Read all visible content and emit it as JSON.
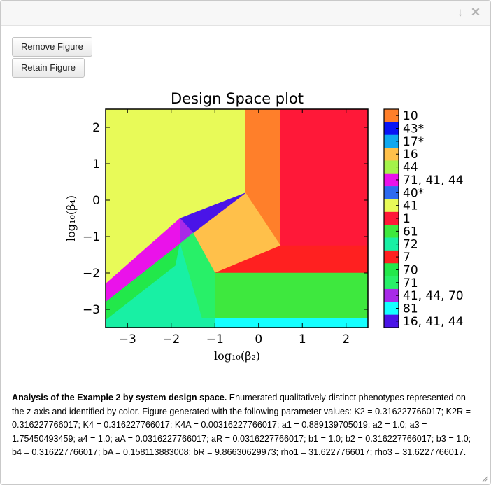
{
  "window": {
    "collapse_icon": "arrow-down-icon",
    "close_icon": "close-icon"
  },
  "buttons": {
    "remove_label": "Remove Figure",
    "retain_label": "Retain Figure"
  },
  "chart_data": {
    "type": "heatmap",
    "title": "Design Space plot",
    "xlabel": "log₁₀(β₂)",
    "ylabel": "log₁₀(β₄)",
    "xlim": [
      -3.5,
      2.5
    ],
    "ylim": [
      -3.5,
      2.5
    ],
    "xticks": [
      "−3",
      "−2",
      "−1",
      "0",
      "1",
      "2"
    ],
    "xtick_values": [
      -3,
      -2,
      -1,
      0,
      1,
      2
    ],
    "yticks": [
      "−3",
      "−2",
      "−1",
      "0",
      "1",
      "2"
    ],
    "ytick_values": [
      -3,
      -2,
      -1,
      0,
      1,
      2
    ],
    "legend_placement": "right",
    "legend": [
      {
        "label": "10",
        "color": "#ff7f2a"
      },
      {
        "label": "43*",
        "color": "#0a14f5"
      },
      {
        "label": "17*",
        "color": "#10a8f0"
      },
      {
        "label": "16",
        "color": "#ffc04a"
      },
      {
        "label": "44",
        "color": "#a4f34a"
      },
      {
        "label": "71, 41, 44",
        "color": "#ea12ea"
      },
      {
        "label": "40*",
        "color": "#2d6bf0"
      },
      {
        "label": "41",
        "color": "#e8fa58"
      },
      {
        "label": "1",
        "color": "#ff1838"
      },
      {
        "label": "61",
        "color": "#3ee83e"
      },
      {
        "label": "72",
        "color": "#18f0a4"
      },
      {
        "label": "7",
        "color": "#ff2020"
      },
      {
        "label": "70",
        "color": "#22e84a"
      },
      {
        "label": "71",
        "color": "#28f068"
      },
      {
        "label": "41, 44, 70",
        "color": "#a82ae8"
      },
      {
        "label": "81",
        "color": "#14ffff"
      },
      {
        "label": "16, 41, 44",
        "color": "#4a14e8"
      }
    ],
    "regions": [
      {
        "phenotype": "41",
        "color": "#e8fa58",
        "points": [
          [
            -3.5,
            -2.3
          ],
          [
            -1.8,
            -0.5
          ],
          [
            -0.3,
            0.2
          ],
          [
            -0.3,
            2.5
          ],
          [
            -3.5,
            2.5
          ]
        ]
      },
      {
        "phenotype": "10",
        "color": "#ff7f2a",
        "points": [
          [
            -0.3,
            2.5
          ],
          [
            0.5,
            2.5
          ],
          [
            0.5,
            -1.25
          ],
          [
            -0.3,
            0.2
          ]
        ]
      },
      {
        "phenotype": "1",
        "color": "#ff1838",
        "points": [
          [
            0.5,
            2.5
          ],
          [
            2.5,
            2.5
          ],
          [
            2.5,
            -1.25
          ],
          [
            0.5,
            -1.25
          ]
        ]
      },
      {
        "phenotype": "16",
        "color": "#ffc04a",
        "points": [
          [
            -1.5,
            -0.9
          ],
          [
            -0.3,
            0.2
          ],
          [
            0.5,
            -1.25
          ],
          [
            -1.0,
            -2.0
          ]
        ]
      },
      {
        "phenotype": "16, 41, 44",
        "color": "#4a14e8",
        "points": [
          [
            -1.8,
            -0.5
          ],
          [
            -0.3,
            0.2
          ],
          [
            -1.5,
            -0.9
          ],
          [
            -1.8,
            -1.2
          ]
        ]
      },
      {
        "phenotype": "71, 41, 44",
        "color": "#ea12ea",
        "points": [
          [
            -3.5,
            -2.3
          ],
          [
            -1.8,
            -0.5
          ],
          [
            -1.8,
            -1.2
          ],
          [
            -3.5,
            -2.8
          ]
        ]
      },
      {
        "phenotype": "41, 44, 70",
        "color": "#a82ae8",
        "points": [
          [
            -1.8,
            -0.5
          ],
          [
            -1.5,
            -0.9
          ],
          [
            -1.8,
            -1.2
          ]
        ]
      },
      {
        "phenotype": "7",
        "color": "#ff2020",
        "points": [
          [
            -1.0,
            -2.0
          ],
          [
            0.5,
            -1.25
          ],
          [
            2.5,
            -1.25
          ],
          [
            2.5,
            -2.0
          ]
        ]
      },
      {
        "phenotype": "61",
        "color": "#3ee83e",
        "points": [
          [
            -1.0,
            -2.0
          ],
          [
            2.5,
            -2.0
          ],
          [
            2.5,
            -3.25
          ],
          [
            -1.0,
            -3.25
          ]
        ]
      },
      {
        "phenotype": "71",
        "color": "#28f068",
        "points": [
          [
            -1.8,
            -1.2
          ],
          [
            -1.5,
            -0.9
          ],
          [
            -1.0,
            -2.0
          ],
          [
            -1.0,
            -3.25
          ],
          [
            -1.3,
            -3.25
          ]
        ]
      },
      {
        "phenotype": "70",
        "color": "#22e84a",
        "points": [
          [
            -3.5,
            -2.8
          ],
          [
            -1.8,
            -1.2
          ],
          [
            -1.9,
            -1.8
          ],
          [
            -3.5,
            -3.3
          ]
        ]
      },
      {
        "phenotype": "72",
        "color": "#18f0a4",
        "points": [
          [
            -3.5,
            -3.3
          ],
          [
            -1.9,
            -1.8
          ],
          [
            -1.8,
            -1.2
          ],
          [
            -1.3,
            -3.25
          ],
          [
            -1.0,
            -3.25
          ],
          [
            -1.0,
            -3.5
          ],
          [
            -3.5,
            -3.5
          ]
        ]
      },
      {
        "phenotype": "81",
        "color": "#14ffff",
        "points": [
          [
            -1.0,
            -3.25
          ],
          [
            2.5,
            -3.25
          ],
          [
            2.5,
            -3.5
          ],
          [
            -1.0,
            -3.5
          ]
        ]
      }
    ]
  },
  "caption": {
    "bold": "Analysis of the Example 2 by system design space.",
    "text": "Enumerated qualitatively-distinct phenotypes represented on the z-axis and identified by color. Figure generated with the following parameter values: K2 = 0.316227766017; K2R = 0.316227766017; K4 = 0.316227766017; K4A = 0.00316227766017; a1 = 0.889139705019; a2 = 1.0; a3 = 1.75450493459; a4 = 1.0; aA = 0.0316227766017; aR = 0.0316227766017; b1 = 1.0; b2 = 0.316227766017; b3 = 1.0; b4 = 0.316227766017; bA = 0.158113883008; bR = 9.86630629973; rho1 = 31.6227766017; rho3 = 31.6227766017."
  }
}
